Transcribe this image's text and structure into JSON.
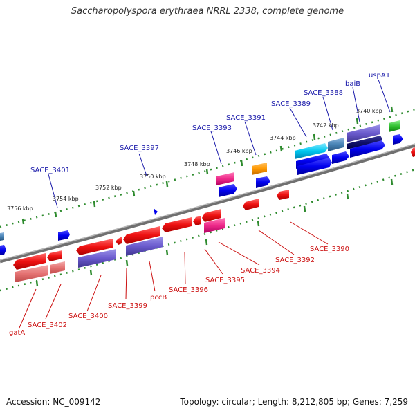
{
  "title": "Saccharopolyspora erythraea NRRL 2338, complete genome",
  "footer": {
    "accession": "Accession: NC_009142",
    "summary": "Topology: circular; Length: 8,212,805 bp; Genes: 7,259"
  },
  "scale": {
    "ticks": [
      "3756 kbp",
      "3754 kbp",
      "3752 kbp",
      "3750 kbp",
      "3748 kbp",
      "3746 kbp",
      "3744 kbp",
      "3742 kbp",
      "3740 kbp"
    ]
  },
  "genes_top": [
    "SACE_3401",
    "SACE_3397",
    "SACE_3393",
    "SACE_3391",
    "SACE_3389",
    "SACE_3388",
    "baiB",
    "uspA1"
  ],
  "genes_bottom": [
    "gatA",
    "SACE_3402",
    "SACE_3400",
    "SACE_3399",
    "pccB",
    "SACE_3396",
    "SACE_3395",
    "SACE_3394",
    "SACE_3392",
    "SACE_3390"
  ],
  "colors": {
    "top_label": "#1a1aaa",
    "bottom_label": "#cc1111",
    "backbone": "#808080",
    "tick": "#2e8b2e"
  }
}
